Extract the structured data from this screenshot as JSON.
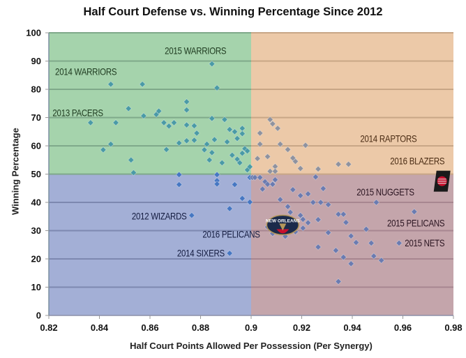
{
  "chart_data": {
    "type": "scatter",
    "title": "Half Court Defense vs. Winning Percentage Since 2012",
    "xlabel": "Half Court Points Allowed Per Possession (Per Synergy)",
    "ylabel": "Winning Percentage",
    "xlim": [
      0.82,
      0.98
    ],
    "ylim": [
      0,
      100
    ],
    "x_ticks": [
      "0.82",
      "0.84",
      "0.86",
      "0.88",
      "0.9",
      "0.92",
      "0.94",
      "0.96",
      "0.98"
    ],
    "x_tick_values": [
      0.82,
      0.84,
      0.86,
      0.88,
      0.9,
      0.92,
      0.94,
      0.96,
      0.98
    ],
    "y_ticks": [
      "0",
      "10",
      "20",
      "30",
      "40",
      "50",
      "60",
      "70",
      "80",
      "90",
      "100"
    ],
    "y_tick_values": [
      0,
      10,
      20,
      30,
      40,
      50,
      60,
      70,
      80,
      90,
      100
    ],
    "grid": "horizontal",
    "quadrant_split": {
      "x": 0.9,
      "y": 50
    },
    "quadrants": [
      {
        "name": "top-left",
        "color": "#a5d3ac",
        "point_color": "#4a9aa6"
      },
      {
        "name": "top-right",
        "color": "#ecc9a8",
        "point_color": "#8f929e"
      },
      {
        "name": "bottom-left",
        "color": "#a3afd6",
        "point_color": "#4677c2"
      },
      {
        "name": "bottom-right",
        "color": "#c4a5ab",
        "point_color": "#6b7bb0"
      }
    ],
    "gridline_colors": {
      "top-left": "#7fa98a",
      "top-right": "#c8a686",
      "bottom-left": "#7d88b0",
      "bottom-right": "#a78690"
    },
    "points": [
      [
        0.8845,
        89.0
      ],
      [
        0.8445,
        81.8
      ],
      [
        0.857,
        81.8
      ],
      [
        0.8865,
        80.5
      ],
      [
        0.8745,
        75.6
      ],
      [
        0.8515,
        73.2
      ],
      [
        0.8625,
        71.1
      ],
      [
        0.8635,
        72.3
      ],
      [
        0.8745,
        72.7
      ],
      [
        0.8365,
        68.2
      ],
      [
        0.8465,
        68.2
      ],
      [
        0.8575,
        70.6
      ],
      [
        0.8655,
        68.2
      ],
      [
        0.8675,
        67.0
      ],
      [
        0.8695,
        68.2
      ],
      [
        0.8745,
        67.4
      ],
      [
        0.8775,
        67.1
      ],
      [
        0.8845,
        69.7
      ],
      [
        0.8895,
        69.3
      ],
      [
        0.8965,
        66.2
      ],
      [
        0.8935,
        65.0
      ],
      [
        0.8915,
        65.8
      ],
      [
        0.8905,
        61.4
      ],
      [
        0.8945,
        62.6
      ],
      [
        0.8965,
        64.3
      ],
      [
        0.8415,
        58.6
      ],
      [
        0.8445,
        60.6
      ],
      [
        0.8525,
        55.0
      ],
      [
        0.8535,
        50.5
      ],
      [
        0.8665,
        58.7
      ],
      [
        0.8715,
        61.0
      ],
      [
        0.8745,
        61.8
      ],
      [
        0.8785,
        64.5
      ],
      [
        0.8825,
        60.6
      ],
      [
        0.8815,
        58.6
      ],
      [
        0.8845,
        57.6
      ],
      [
        0.8855,
        62.2
      ],
      [
        0.8775,
        62.0
      ],
      [
        0.8835,
        55.0
      ],
      [
        0.8885,
        54.0
      ],
      [
        0.8925,
        56.7
      ],
      [
        0.8945,
        55.3
      ],
      [
        0.8965,
        57.4
      ],
      [
        0.8975,
        59.0
      ],
      [
        0.8985,
        58.2
      ],
      [
        0.8955,
        54.0
      ],
      [
        0.8985,
        51.5
      ],
      [
        0.8995,
        52.6
      ],
      [
        0.8715,
        49.8
      ],
      [
        0.8865,
        49.8
      ],
      [
        0.8995,
        48.8
      ],
      [
        0.9035,
        64.5
      ],
      [
        0.9075,
        69.3
      ],
      [
        0.9085,
        67.8
      ],
      [
        0.9105,
        66.2
      ],
      [
        0.9145,
        58.7
      ],
      [
        0.9175,
        54.5
      ],
      [
        0.9195,
        52.0
      ],
      [
        0.9215,
        60.2
      ],
      [
        0.9035,
        60.6
      ],
      [
        0.9115,
        60.6
      ],
      [
        0.9165,
        55.7
      ],
      [
        0.9065,
        56.2
      ],
      [
        0.9095,
        52.7
      ],
      [
        0.9075,
        51.0
      ],
      [
        0.9025,
        55.5
      ],
      [
        0.9055,
        47.3
      ],
      [
        0.9095,
        51.0
      ],
      [
        0.9045,
        44.7
      ],
      [
        0.9085,
        46.5
      ],
      [
        0.9265,
        51.8
      ],
      [
        0.9255,
        49.0
      ],
      [
        0.9345,
        53.5
      ],
      [
        0.9385,
        53.5
      ],
      [
        0.8715,
        46.3
      ],
      [
        0.8865,
        47.7
      ],
      [
        0.8865,
        46.5
      ],
      [
        0.8935,
        46.3
      ],
      [
        0.8965,
        41.4
      ],
      [
        0.8995,
        40.1
      ],
      [
        0.8915,
        37.8
      ],
      [
        0.8765,
        35.4
      ],
      [
        0.8915,
        22.0
      ],
      [
        0.9005,
        48.8
      ],
      [
        0.9015,
        48.8
      ],
      [
        0.9035,
        48.8
      ],
      [
        0.9065,
        46.4
      ],
      [
        0.9085,
        46.4
      ],
      [
        0.9095,
        48.0
      ],
      [
        0.9165,
        44.5
      ],
      [
        0.9195,
        42.4
      ],
      [
        0.9245,
        40.0
      ],
      [
        0.9225,
        43.0
      ],
      [
        0.9285,
        44.9
      ],
      [
        0.9305,
        39.2
      ],
      [
        0.9275,
        40.0
      ],
      [
        0.9115,
        41.0
      ],
      [
        0.9145,
        38.5
      ],
      [
        0.9155,
        36.5
      ],
      [
        0.9125,
        34.1
      ],
      [
        0.9095,
        33.5
      ],
      [
        0.9065,
        31.3
      ],
      [
        0.9085,
        29.0
      ],
      [
        0.9135,
        28.0
      ],
      [
        0.9175,
        29.6
      ],
      [
        0.9195,
        35.4
      ],
      [
        0.9205,
        34.0
      ],
      [
        0.9225,
        32.8
      ],
      [
        0.9205,
        30.9
      ],
      [
        0.9265,
        33.9
      ],
      [
        0.9345,
        35.8
      ],
      [
        0.9365,
        35.8
      ],
      [
        0.9375,
        32.9
      ],
      [
        0.9305,
        29.3
      ],
      [
        0.9395,
        28.1
      ],
      [
        0.9415,
        25.8
      ],
      [
        0.9455,
        30.5
      ],
      [
        0.9475,
        25.6
      ],
      [
        0.9265,
        24.2
      ],
      [
        0.9335,
        23.0
      ],
      [
        0.9365,
        20.6
      ],
      [
        0.9395,
        18.3
      ],
      [
        0.9485,
        21.0
      ],
      [
        0.9515,
        19.5
      ],
      [
        0.9345,
        12.0
      ],
      [
        0.9495,
        40.0
      ],
      [
        0.9645,
        36.7
      ],
      [
        0.9585,
        25.6
      ]
    ],
    "annotations": [
      {
        "text": "2015 WARRIORS",
        "x": 0.878,
        "y": 92.5,
        "color": "#1e3a1f",
        "anchor": "middle"
      },
      {
        "text": "2014 WARRIORS",
        "x": 0.8225,
        "y": 85.0,
        "color": "#1e3a1f",
        "anchor": "start"
      },
      {
        "text": "2013 PACERS",
        "x": 0.8215,
        "y": 70.5,
        "color": "#1e3a1f",
        "anchor": "start"
      },
      {
        "text": "2014 RAPTORS",
        "x": 0.9655,
        "y": 61.3,
        "color": "#4a2c14",
        "anchor": "end"
      },
      {
        "text": "2016 BLAZERS",
        "x": 0.9765,
        "y": 53.5,
        "color": "#4a2c14",
        "anchor": "end"
      },
      {
        "text": "2015 NUGGETS",
        "x": 0.9645,
        "y": 42.5,
        "color": "#2a1420",
        "anchor": "end"
      },
      {
        "text": "2015 PELICANS",
        "x": 0.9765,
        "y": 31.5,
        "color": "#2a1420",
        "anchor": "end"
      },
      {
        "text": "2015 NETS",
        "x": 0.9765,
        "y": 24.5,
        "color": "#2a1420",
        "anchor": "end"
      },
      {
        "text": "2012 WIZARDS",
        "x": 0.8745,
        "y": 34.0,
        "color": "#141c40",
        "anchor": "end"
      },
      {
        "text": "2016 PELICANS",
        "x": 0.9035,
        "y": 27.5,
        "color": "#141c40",
        "anchor": "end"
      },
      {
        "text": "2014 SIXERS",
        "x": 0.8895,
        "y": 20.8,
        "color": "#141c40",
        "anchor": "end"
      }
    ],
    "logos": [
      {
        "name": "new-orleans-pelicans-logo",
        "text": "NEW ORLEANS",
        "x": 0.9125,
        "y": 32.0
      },
      {
        "name": "portland-trail-blazers-logo",
        "text": "PORTLAND TRAIL BLAZERS",
        "x": 0.9755,
        "y": 47.5
      }
    ]
  }
}
